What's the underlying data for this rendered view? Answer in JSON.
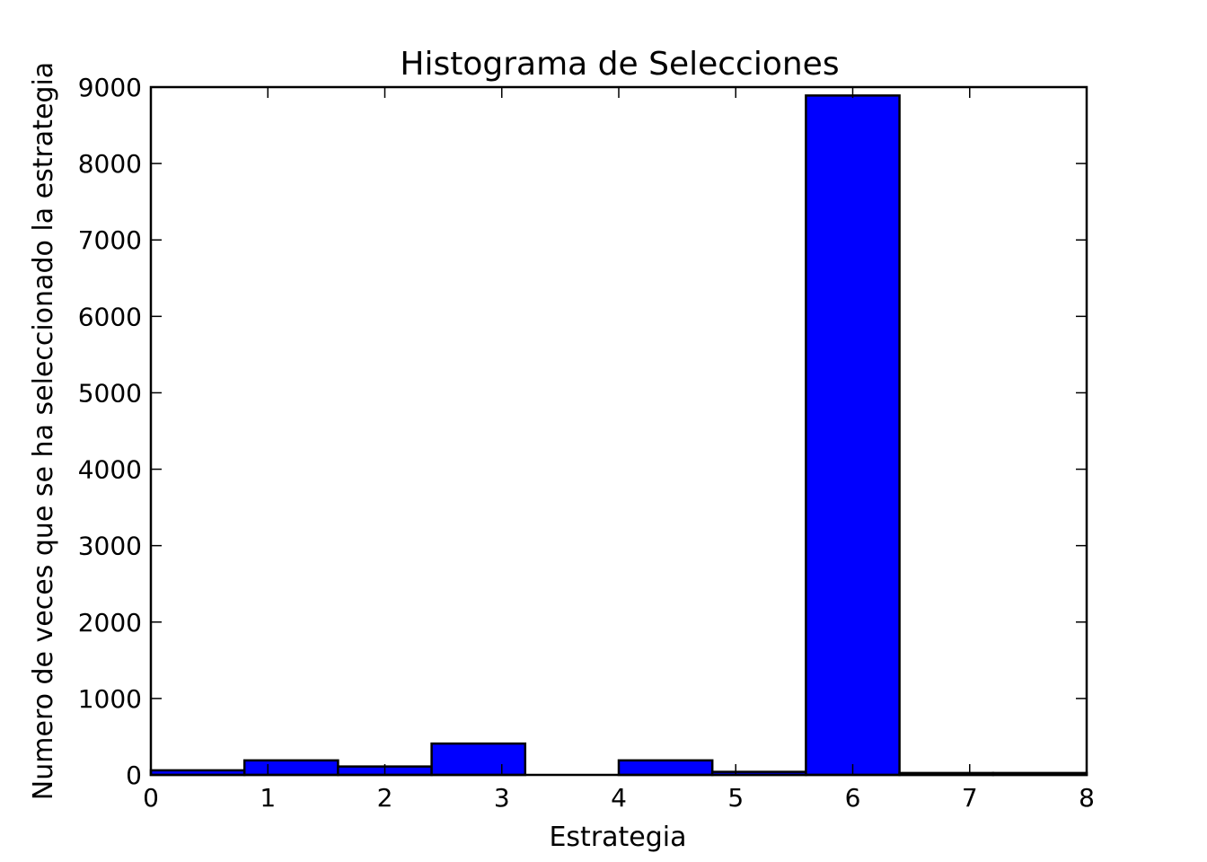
{
  "chart_data": {
    "type": "bar",
    "title": "Histograma de Selecciones",
    "xlabel": "Estrategia",
    "ylabel": "Numero de veces que se ha seleccionado la estrategia",
    "xlim": [
      0,
      8
    ],
    "ylim": [
      0,
      9000
    ],
    "xticks": [
      "0",
      "1",
      "2",
      "3",
      "4",
      "5",
      "6",
      "7",
      "8"
    ],
    "yticks": [
      "0",
      "1000",
      "2000",
      "3000",
      "4000",
      "5000",
      "6000",
      "7000",
      "8000",
      "9000"
    ],
    "grid": false,
    "bins": [
      {
        "x0": 0.0,
        "x1": 0.8,
        "value": 60
      },
      {
        "x0": 0.8,
        "x1": 1.6,
        "value": 190
      },
      {
        "x0": 1.6,
        "x1": 2.4,
        "value": 110
      },
      {
        "x0": 2.4,
        "x1": 3.2,
        "value": 410
      },
      {
        "x0": 3.2,
        "x1": 4.0,
        "value": 0
      },
      {
        "x0": 4.0,
        "x1": 4.8,
        "value": 190
      },
      {
        "x0": 4.8,
        "x1": 5.6,
        "value": 40
      },
      {
        "x0": 5.6,
        "x1": 6.4,
        "value": 8890
      },
      {
        "x0": 6.4,
        "x1": 7.2,
        "value": 25
      },
      {
        "x0": 7.2,
        "x1": 8.0,
        "value": 25
      }
    ],
    "colors": {
      "bar": "#0000ff",
      "edge": "#000000"
    }
  }
}
